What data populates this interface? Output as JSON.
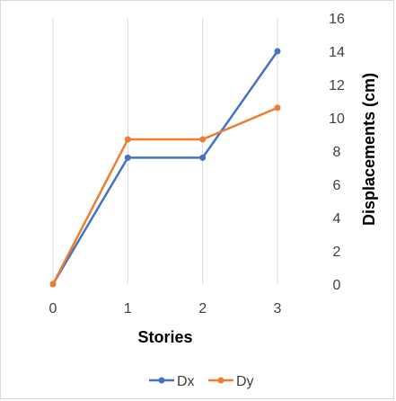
{
  "chart_data": {
    "type": "line",
    "x": [
      0,
      1,
      2,
      3
    ],
    "xticklabels": [
      "0",
      "1",
      "2",
      "3"
    ],
    "series": [
      {
        "name": "Dx",
        "color": "#4472C4",
        "values": [
          0,
          7.6,
          7.6,
          14.0
        ]
      },
      {
        "name": "Dy",
        "color": "#ED7D31",
        "values": [
          0,
          8.7,
          8.7,
          10.6
        ]
      }
    ],
    "xlabel": "Stories",
    "ylabel": "Displacements (cm)",
    "ylim": [
      0,
      16
    ],
    "yticks": [
      0,
      2,
      4,
      6,
      8,
      10,
      12,
      14,
      16
    ],
    "yaxis_position": "right",
    "grid": "vertical",
    "legend": "bottom"
  }
}
